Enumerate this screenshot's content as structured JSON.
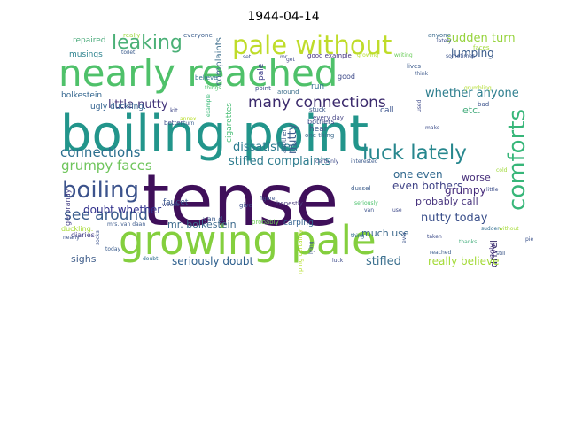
{
  "title": "1944-04-14",
  "word_cloud": {
    "words": [
      {
        "text": "tense",
        "color": "#3f0f5a"
      },
      {
        "text": "boiling point",
        "color": "#22958b"
      },
      {
        "text": "nearly reached",
        "color": "#4fc16a"
      },
      {
        "text": "growing pale",
        "color": "#84cf3e"
      },
      {
        "text": "pale without",
        "color": "#bfdc2a"
      },
      {
        "text": "comforts",
        "color": "#37b679"
      },
      {
        "text": "boiling",
        "color": "#3c538c"
      },
      {
        "text": "leaking",
        "color": "#4bb077"
      },
      {
        "text": "luck lately",
        "color": "#27878e"
      },
      {
        "text": "many connections",
        "color": "#3b2a6c"
      },
      {
        "text": "connections",
        "color": "#2c6f8e"
      },
      {
        "text": "see around",
        "color": "#3a5d8c"
      },
      {
        "text": "grumpy faces",
        "color": "#6fc55c"
      },
      {
        "text": "little nutty",
        "color": "#43357a"
      },
      {
        "text": "dissatisfied",
        "color": "#2a7a8e"
      },
      {
        "text": "stifled complaints",
        "color": "#2e7c8e"
      },
      {
        "text": "nutty",
        "color": "#3d5c8c"
      },
      {
        "text": "sudden turn",
        "color": "#96d33c"
      },
      {
        "text": "jumping",
        "color": "#3a5b8a"
      },
      {
        "text": "whether anyone",
        "color": "#2d7e8e"
      },
      {
        "text": "etc.",
        "color": "#47ad7e"
      },
      {
        "text": "one even",
        "color": "#31688e"
      },
      {
        "text": "grumpy",
        "color": "#44287a"
      },
      {
        "text": "even bothers",
        "color": "#414487"
      },
      {
        "text": "worse",
        "color": "#452d79"
      },
      {
        "text": "nutty today",
        "color": "#3a4f8a"
      },
      {
        "text": "probably call",
        "color": "#47337d"
      },
      {
        "text": "doubt whether",
        "color": "#31308c"
      },
      {
        "text": "much use",
        "color": "#3e6a8d"
      },
      {
        "text": "drivel",
        "color": "#3a2f6b"
      },
      {
        "text": "stifled",
        "color": "#3a6f8e"
      },
      {
        "text": "really believe",
        "color": "#a3da36"
      },
      {
        "text": "seriously doubt",
        "color": "#2e5f8d"
      },
      {
        "text": "sighs",
        "color": "#3f5d8a"
      },
      {
        "text": "mr. bolkestein",
        "color": "#3c6a8c"
      },
      {
        "text": "repaired",
        "color": "#4cab7c"
      },
      {
        "text": "musings",
        "color": "#2c828e"
      },
      {
        "text": "bolkestein",
        "color": "#32658e"
      },
      {
        "text": "ugly duckling.",
        "color": "#2f5f8d"
      },
      {
        "text": "faucet",
        "color": "#39558c"
      },
      {
        "text": "gerbrandy",
        "color": "#433e85"
      },
      {
        "text": "complaints",
        "color": "#3f6f8d"
      },
      {
        "text": "cigarettes",
        "color": "#46bd73"
      },
      {
        "text": "pale",
        "color": "#3e3d8a"
      },
      {
        "text": "carping",
        "color": "#2d5f8d"
      },
      {
        "text": "bothers",
        "color": "#3a4b8a"
      },
      {
        "text": "hear",
        "color": "#3f5a8b"
      },
      {
        "text": "run",
        "color": "#2f6f8e"
      },
      {
        "text": "diaries",
        "color": "#433e85"
      },
      {
        "text": "duckling.",
        "color": "#a7db34"
      },
      {
        "text": "van d.",
        "color": "#3d5c8c"
      },
      {
        "text": "give",
        "color": "#3c4f8a"
      },
      {
        "text": "honestly",
        "color": "#4c3f7e"
      },
      {
        "text": "probably",
        "color": "#6ece58"
      },
      {
        "text": "ugly",
        "color": "#46337e"
      },
      {
        "text": "lives",
        "color": "#3a5a8b"
      },
      {
        "text": "good",
        "color": "#3e4a89"
      },
      {
        "text": "call",
        "color": "#3a538c"
      },
      {
        "text": "point",
        "color": "#3f4c8a"
      },
      {
        "text": "around",
        "color": "#42738e"
      },
      {
        "text": "figure",
        "color": "#3b528b"
      },
      {
        "text": "stuck",
        "color": "#3e5b8c"
      },
      {
        "text": "another",
        "color": "#3f5f8d"
      },
      {
        "text": "every day",
        "color": "#4a4a89"
      },
      {
        "text": "one thing",
        "color": "#3d6b8e"
      },
      {
        "text": "really",
        "color": "#9bd93c"
      },
      {
        "text": "everyone",
        "color": "#3b5d8c"
      },
      {
        "text": "anyone",
        "color": "#3c6c8e"
      },
      {
        "text": "lately",
        "color": "#3c4e8a"
      },
      {
        "text": "good example",
        "color": "#46337e"
      },
      {
        "text": "growing",
        "color": "#b5de2b"
      },
      {
        "text": "writing",
        "color": "#6ccd5a"
      },
      {
        "text": "toilet",
        "color": "#3a5b8b"
      },
      {
        "text": "mr.",
        "color": "#3e4989"
      },
      {
        "text": "set",
        "color": "#3b528b"
      },
      {
        "text": "believe",
        "color": "#2d708e"
      },
      {
        "text": "things",
        "color": "#4ec36b"
      },
      {
        "text": "kit",
        "color": "#3f4788"
      },
      {
        "text": "annex",
        "color": "#b8de29"
      },
      {
        "text": "better",
        "color": "#3c4f8a"
      },
      {
        "text": "turn",
        "color": "#3a5e8c"
      },
      {
        "text": "example",
        "color": "#38b977"
      },
      {
        "text": "faces",
        "color": "#a2da37"
      },
      {
        "text": "sometimes",
        "color": "#3a538b"
      },
      {
        "text": "make",
        "color": "#3d4d8a"
      },
      {
        "text": "bad",
        "color": "#3b528b"
      },
      {
        "text": "think",
        "color": "#3f5a8c"
      },
      {
        "text": "used",
        "color": "#3e4989"
      },
      {
        "text": "grumbling",
        "color": "#b2dd2d"
      },
      {
        "text": "cold",
        "color": "#a0da39"
      },
      {
        "text": "little",
        "color": "#3d4e8a"
      },
      {
        "text": "sudden",
        "color": "#2f6c8e"
      },
      {
        "text": "thanks",
        "color": "#45af7d"
      },
      {
        "text": "reached",
        "color": "#3a5c8c"
      },
      {
        "text": "still",
        "color": "#3f5a8a"
      },
      {
        "text": "taken",
        "color": "#3e4d8a"
      },
      {
        "text": "pie",
        "color": "#3b528b"
      },
      {
        "text": "without",
        "color": "#a5db36"
      },
      {
        "text": "certainly",
        "color": "#3e4a89"
      },
      {
        "text": "interested",
        "color": "#3d5b8c"
      },
      {
        "text": "dussel",
        "color": "#3f5f8d"
      },
      {
        "text": "van",
        "color": "#3b528b"
      },
      {
        "text": "use",
        "color": "#3e4989"
      },
      {
        "text": "seriously",
        "color": "#4cc26c"
      },
      {
        "text": "ever",
        "color": "#3a538b"
      },
      {
        "text": "luck",
        "color": "#3f4c8a"
      },
      {
        "text": "thing",
        "color": "#2f6b8e"
      },
      {
        "text": "nearly",
        "color": "#3b528b"
      },
      {
        "text": "today",
        "color": "#3a5b8b"
      },
      {
        "text": "doubt",
        "color": "#2e6f8e"
      },
      {
        "text": "woods",
        "color": "#3f4c8a"
      },
      {
        "text": "mrs. van daan",
        "color": "#3d5b8c"
      },
      {
        "text": "socks",
        "color": "#3b528b"
      },
      {
        "text": "carping certainly",
        "color": "#b5de2b"
      },
      {
        "text": "lying",
        "color": "#3b528b"
      },
      {
        "text": "get",
        "color": "#3e4989"
      }
    ]
  }
}
